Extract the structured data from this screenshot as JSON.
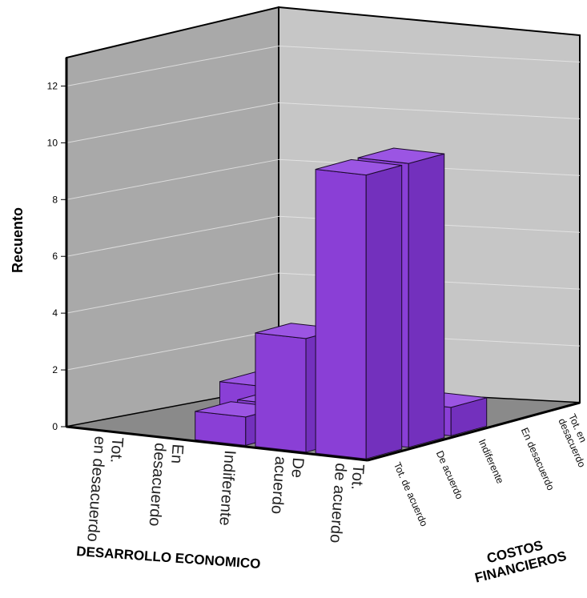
{
  "chart_data": {
    "type": "bar",
    "subtype": "3d-bar",
    "ylabel": "Recuento",
    "xlabel": "DESARROLLO ECONOMICO",
    "zlabel": "COSTOS FINANCIEROS",
    "ylim": [
      0,
      13
    ],
    "yticks": [
      0,
      2,
      4,
      6,
      8,
      10,
      12
    ],
    "grid": true,
    "x_categories": [
      "Tot. en desacuerdo",
      "En desacuerdo",
      "Indiferente",
      "De acuerdo",
      "Tot. de acuerdo"
    ],
    "z_categories": [
      "Tot. de acuerdo",
      "De acuerdo",
      "Indiferente",
      "En desacuerdo",
      "Tot. en desacuerdo"
    ],
    "bars": [
      {
        "x": "Tot. de acuerdo",
        "z": "Tot. de acuerdo",
        "value": 10
      },
      {
        "x": "Tot. de acuerdo",
        "z": "De acuerdo",
        "value": 10
      },
      {
        "x": "Tot. de acuerdo",
        "z": "Indiferente",
        "value": 1
      },
      {
        "x": "De acuerdo",
        "z": "Tot. de acuerdo",
        "value": 4
      },
      {
        "x": "De acuerdo",
        "z": "De acuerdo",
        "value": 1
      },
      {
        "x": "Indiferente",
        "z": "Tot. de acuerdo",
        "value": 1
      },
      {
        "x": "Indiferente",
        "z": "De acuerdo",
        "value": 1
      },
      {
        "x": "Indiferente",
        "z": "Indiferente",
        "value": 1
      },
      {
        "x": "En desacuerdo",
        "z": "Indiferente",
        "value": 1
      },
      {
        "x": "En desacuerdo",
        "z": "En desacuerdo",
        "value": 1
      }
    ],
    "colors": {
      "bar": "#8a3fd6",
      "wall": "#c6c6c6",
      "wall_left": "#a9a9a9",
      "floor": "#8a8a8a"
    }
  }
}
